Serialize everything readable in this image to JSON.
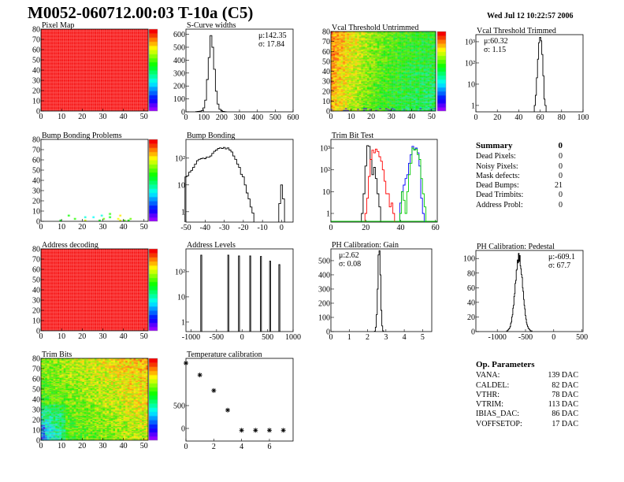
{
  "header": {
    "title": "M0052-060712.00:03 T-10a (C5)",
    "date": "Wed Jul 12 10:22:57 2006"
  },
  "summary": {
    "title": "Summary",
    "total": "0",
    "rows": [
      {
        "label": "Dead Pixels:",
        "value": "0"
      },
      {
        "label": "Noisy Pixels:",
        "value": "0"
      },
      {
        "label": "Mask defects:",
        "value": "0"
      },
      {
        "label": "Dead Bumps:",
        "value": "21"
      },
      {
        "label": "Dead Trimbits:",
        "value": "0"
      },
      {
        "label": "Address Probl:",
        "value": "0"
      }
    ]
  },
  "op_parameters": {
    "title": "Op. Parameters",
    "rows": [
      {
        "label": "VANA:",
        "value": "139 DAC"
      },
      {
        "label": "CALDEL:",
        "value": "82 DAC"
      },
      {
        "label": "VTHR:",
        "value": "78 DAC"
      },
      {
        "label": "VTRIM:",
        "value": "113 DAC"
      },
      {
        "label": "IBIAS_DAC:",
        "value": "86 DAC"
      },
      {
        "label": "VOFFSETOP:",
        "value": "17 DAC"
      }
    ]
  },
  "chart_data": [
    {
      "key": "pixel-map",
      "type": "heatmap",
      "title": "Pixel Map",
      "xlim": [
        0,
        52
      ],
      "ylim": [
        0,
        80
      ],
      "zlim": [
        0,
        10
      ],
      "uniform_value": 10,
      "xticks": [
        0,
        10,
        20,
        30,
        40,
        50
      ],
      "yticks": [
        0,
        10,
        20,
        30,
        40,
        50,
        60,
        70,
        80
      ]
    },
    {
      "key": "s-curve-widths",
      "type": "bar",
      "title": "S-Curve widths",
      "xlim": [
        0,
        600
      ],
      "ylim": [
        0,
        640
      ],
      "log": false,
      "xticks": [
        0,
        100,
        200,
        300,
        400,
        500,
        600
      ],
      "yticks": [
        0,
        100,
        200,
        300,
        400,
        500,
        600
      ],
      "stats": [
        "μ:142.35",
        "σ: 17.84"
      ],
      "bin_width": 10,
      "series": [
        {
          "color": "#000000",
          "x": [
            60,
            70,
            80,
            90,
            100,
            110,
            120,
            130,
            140,
            150,
            160,
            170,
            180,
            190,
            200,
            210,
            220
          ],
          "y": [
            2,
            3,
            5,
            10,
            30,
            90,
            250,
            420,
            590,
            500,
            330,
            160,
            60,
            20,
            8,
            3,
            1
          ]
        }
      ]
    },
    {
      "key": "vcal-threshold-untrimmed",
      "type": "heatmap",
      "title": "Vcal Threshold Untrimmed",
      "xlim": [
        0,
        52
      ],
      "ylim": [
        0,
        80
      ],
      "zlim": [
        78,
        118
      ],
      "xticks": [
        0,
        10,
        20,
        30,
        40,
        50
      ],
      "yticks": [
        0,
        10,
        20,
        30,
        40,
        50,
        60,
        70,
        80
      ]
    },
    {
      "key": "vcal-threshold-trimmed",
      "type": "bar",
      "title": "Vcal Threshold Trimmed",
      "xlim": [
        0,
        100
      ],
      "ylim": [
        0.5,
        2150
      ],
      "log": true,
      "xticks": [
        0,
        20,
        40,
        60,
        80,
        100
      ],
      "yticks": [
        1,
        10,
        100,
        1000
      ],
      "ytick_labels": [
        "1",
        "10",
        "10²",
        "10³"
      ],
      "stats": [
        "μ:60.32",
        "σ: 1.15"
      ],
      "bin_width": 1,
      "series": [
        {
          "color": "#000000",
          "x": [
            55,
            56,
            57,
            58,
            59,
            60,
            61,
            62,
            63,
            64,
            65
          ],
          "y": [
            1,
            3,
            20,
            150,
            900,
            1600,
            1100,
            250,
            25,
            2,
            1
          ]
        }
      ]
    },
    {
      "key": "bump-bonding-problems",
      "type": "heatmap",
      "title": "Bump Bonding Problems",
      "xlim": [
        0,
        52
      ],
      "ylim": [
        0,
        80
      ],
      "zlim": [
        0,
        4
      ],
      "xticks": [
        0,
        10,
        20,
        30,
        40,
        50
      ],
      "yticks": [
        0,
        10,
        20,
        30,
        40,
        50,
        60,
        70,
        80
      ],
      "points": [
        [
          9,
          0,
          2.2
        ],
        [
          13,
          3,
          2.3
        ],
        [
          16,
          1,
          2.4
        ],
        [
          21,
          2,
          1.5
        ],
        [
          21,
          0,
          3.0
        ],
        [
          25,
          2,
          1.4
        ],
        [
          28,
          0,
          2.2
        ],
        [
          29,
          3,
          1.5
        ],
        [
          30,
          1,
          2.6
        ],
        [
          33,
          4,
          2.4
        ],
        [
          33,
          2,
          2.2
        ],
        [
          37,
          1,
          3.1
        ],
        [
          38,
          3,
          3.2
        ],
        [
          38,
          0,
          3.0
        ],
        [
          40,
          0,
          2.5
        ],
        [
          42,
          0,
          2.3
        ],
        [
          43,
          1,
          2.6
        ]
      ]
    },
    {
      "key": "bump-bonding",
      "type": "bar",
      "title": "Bump Bonding",
      "xlim": [
        -50,
        6
      ],
      "ylim": [
        0.41,
        500
      ],
      "log": true,
      "xticks": [
        -50,
        -40,
        -30,
        -20,
        -10,
        0
      ],
      "yticks": [
        1,
        10,
        100
      ],
      "ytick_labels": [
        "1",
        "10",
        "10²"
      ],
      "bin_width": 1,
      "series": [
        {
          "color": "#000000",
          "x": [
            -50,
            -49,
            -48,
            -47,
            -46,
            -45,
            -44,
            -43,
            -42,
            -41,
            -40,
            -39,
            -38,
            -37,
            -36,
            -35,
            -34,
            -33,
            -32,
            -31,
            -30,
            -29,
            -28,
            -27,
            -26,
            -25,
            -24,
            -23,
            -22,
            -21,
            -20,
            -19,
            -18,
            -17,
            -16,
            -15,
            -1,
            0,
            1
          ],
          "y": [
            20,
            22,
            30,
            35,
            45,
            60,
            80,
            90,
            95,
            100,
            95,
            110,
            110,
            120,
            150,
            180,
            200,
            230,
            240,
            230,
            250,
            220,
            240,
            200,
            170,
            120,
            90,
            60,
            45,
            25,
            20,
            10,
            5,
            3,
            1.5,
            0.9,
            2,
            10,
            3
          ]
        }
      ]
    },
    {
      "key": "trim-bit-test",
      "type": "bar",
      "title": "Trim Bit Test",
      "xlim": [
        0,
        61
      ],
      "ylim": [
        0.4,
        2500
      ],
      "log": true,
      "xticks": [
        0,
        20,
        40,
        60
      ],
      "yticks": [
        1,
        10,
        100,
        1000
      ],
      "ytick_labels": [
        "1",
        "10",
        "10²",
        "10³"
      ],
      "bin_width": 1,
      "series": [
        {
          "color": "#000000",
          "x": [
            18,
            19,
            20,
            21,
            22,
            23,
            24,
            25,
            26,
            27,
            28
          ],
          "y": [
            1,
            8,
            150,
            1300,
            1200,
            300,
            60,
            130,
            40,
            8,
            2
          ]
        },
        {
          "color": "#ff0000",
          "x": [
            20,
            21,
            22,
            23,
            24,
            25,
            26,
            27,
            28,
            29,
            30,
            31,
            32,
            33,
            34,
            35,
            36
          ],
          "y": [
            1,
            5,
            50,
            300,
            800,
            600,
            900,
            700,
            400,
            250,
            100,
            30,
            8,
            8,
            2,
            3,
            1
          ]
        },
        {
          "color": "#0000ff",
          "x": [
            40,
            41,
            42,
            43,
            44,
            45,
            46,
            47,
            48,
            49,
            50,
            51,
            52,
            53
          ],
          "y": [
            3,
            10,
            20,
            40,
            60,
            200,
            500,
            1200,
            900,
            1000,
            600,
            150,
            5,
            1
          ]
        },
        {
          "color": "#00cc00",
          "x": [
            40,
            41,
            42,
            43,
            44,
            45,
            46,
            47,
            48,
            49,
            50,
            51,
            52,
            53,
            54
          ],
          "y": [
            1,
            10,
            4,
            1,
            10,
            60,
            200,
            1000,
            800,
            900,
            500,
            300,
            40,
            8,
            2
          ]
        }
      ]
    },
    {
      "key": "address-decoding",
      "type": "heatmap",
      "title": "Address decoding",
      "xlim": [
        0,
        52
      ],
      "ylim": [
        0,
        80
      ],
      "zlim": [
        0,
        1
      ],
      "uniform_value": 1,
      "xticks": [
        0,
        10,
        20,
        30,
        40,
        50
      ],
      "yticks": [
        0,
        10,
        20,
        30,
        40,
        50,
        60,
        70,
        80
      ]
    },
    {
      "key": "address-levels",
      "type": "bar",
      "title": "Address Levels",
      "xlim": [
        -1100,
        1000
      ],
      "ylim": [
        0.42,
        800
      ],
      "log": true,
      "xticks": [
        -1000,
        -500,
        0,
        500,
        1000
      ],
      "yticks": [
        1,
        10,
        100
      ],
      "ytick_labels": [
        "1",
        "10",
        "10²"
      ],
      "bin_width": 20,
      "series": [
        {
          "color": "#000000",
          "x": [
            -800,
            -270,
            -60,
            160,
            370,
            550,
            730
          ],
          "y": [
            450,
            450,
            420,
            420,
            400,
            260,
            190
          ]
        }
      ]
    },
    {
      "key": "ph-calibration-gain",
      "type": "bar",
      "title": "PH Calibration: Gain",
      "xlim": [
        0,
        5.5
      ],
      "ylim": [
        0,
        583
      ],
      "log": false,
      "xticks": [
        0,
        1,
        2,
        3,
        4,
        5
      ],
      "yticks": [
        0,
        100,
        200,
        300,
        400,
        500
      ],
      "stats": [
        "μ:2.62",
        "σ: 0.08"
      ],
      "bin_width": 0.05,
      "series": [
        {
          "color": "#000000",
          "x": [
            2.4,
            2.45,
            2.5,
            2.55,
            2.6,
            2.65,
            2.7,
            2.75,
            2.8,
            2.85
          ],
          "y": [
            3,
            30,
            120,
            300,
            540,
            570,
            400,
            150,
            40,
            5
          ]
        }
      ]
    },
    {
      "key": "ph-calibration-pedestal",
      "type": "bar",
      "title": "PH Calibration: Pedestal",
      "xlim": [
        -1380,
        520
      ],
      "ylim": [
        0,
        111
      ],
      "log": false,
      "xticks": [
        -1000,
        -500,
        0,
        500
      ],
      "yticks": [
        0,
        20,
        40,
        60,
        80,
        100
      ],
      "stats": [
        "μ:-609.1",
        "σ: 67.7"
      ],
      "bin_width": 10,
      "series": [
        {
          "color": "#000000",
          "x": [
            -830,
            -820,
            -810,
            -800,
            -790,
            -780,
            -770,
            -760,
            -750,
            -740,
            -730,
            -720,
            -710,
            -700,
            -690,
            -680,
            -670,
            -660,
            -650,
            -640,
            -630,
            -620,
            -610,
            -600,
            -590,
            -580,
            -570,
            -560,
            -550,
            -540,
            -530,
            -520,
            -510,
            -500,
            -490,
            -480,
            -470,
            -460,
            -450,
            -440,
            -430,
            -420,
            -410,
            -400,
            -390
          ],
          "y": [
            1,
            1,
            2,
            3,
            4,
            5,
            7,
            11,
            13,
            20,
            23,
            32,
            36,
            48,
            52,
            66,
            70,
            84,
            85,
            98,
            94,
            107,
            96,
            104,
            90,
            86,
            78,
            74,
            60,
            55,
            44,
            36,
            31,
            22,
            17,
            12,
            9,
            7,
            5,
            4,
            3,
            2,
            1,
            1,
            1
          ]
        }
      ]
    },
    {
      "key": "trim-bits",
      "type": "heatmap",
      "title": "Trim Bits",
      "xlim": [
        0,
        52
      ],
      "ylim": [
        0,
        80
      ],
      "zlim": [
        0,
        16
      ],
      "xticks": [
        0,
        10,
        20,
        30,
        40,
        50
      ],
      "yticks": [
        0,
        10,
        20,
        30,
        40,
        50,
        60,
        70,
        80
      ]
    },
    {
      "key": "temperature-calibration",
      "type": "scatter",
      "title": "Temperature calibration",
      "xlim": [
        0,
        7.7
      ],
      "ylim": [
        -276,
        1534
      ],
      "log": false,
      "xticks": [
        0,
        2,
        4,
        6
      ],
      "yticks": [
        0,
        500
      ],
      "series": [
        {
          "color": "#000000",
          "marker": "star",
          "x": [
            0,
            1,
            2,
            3,
            4,
            5,
            6,
            7
          ],
          "y": [
            1430,
            1170,
            830,
            400,
            -40,
            -40,
            -40,
            -40
          ]
        }
      ]
    }
  ]
}
